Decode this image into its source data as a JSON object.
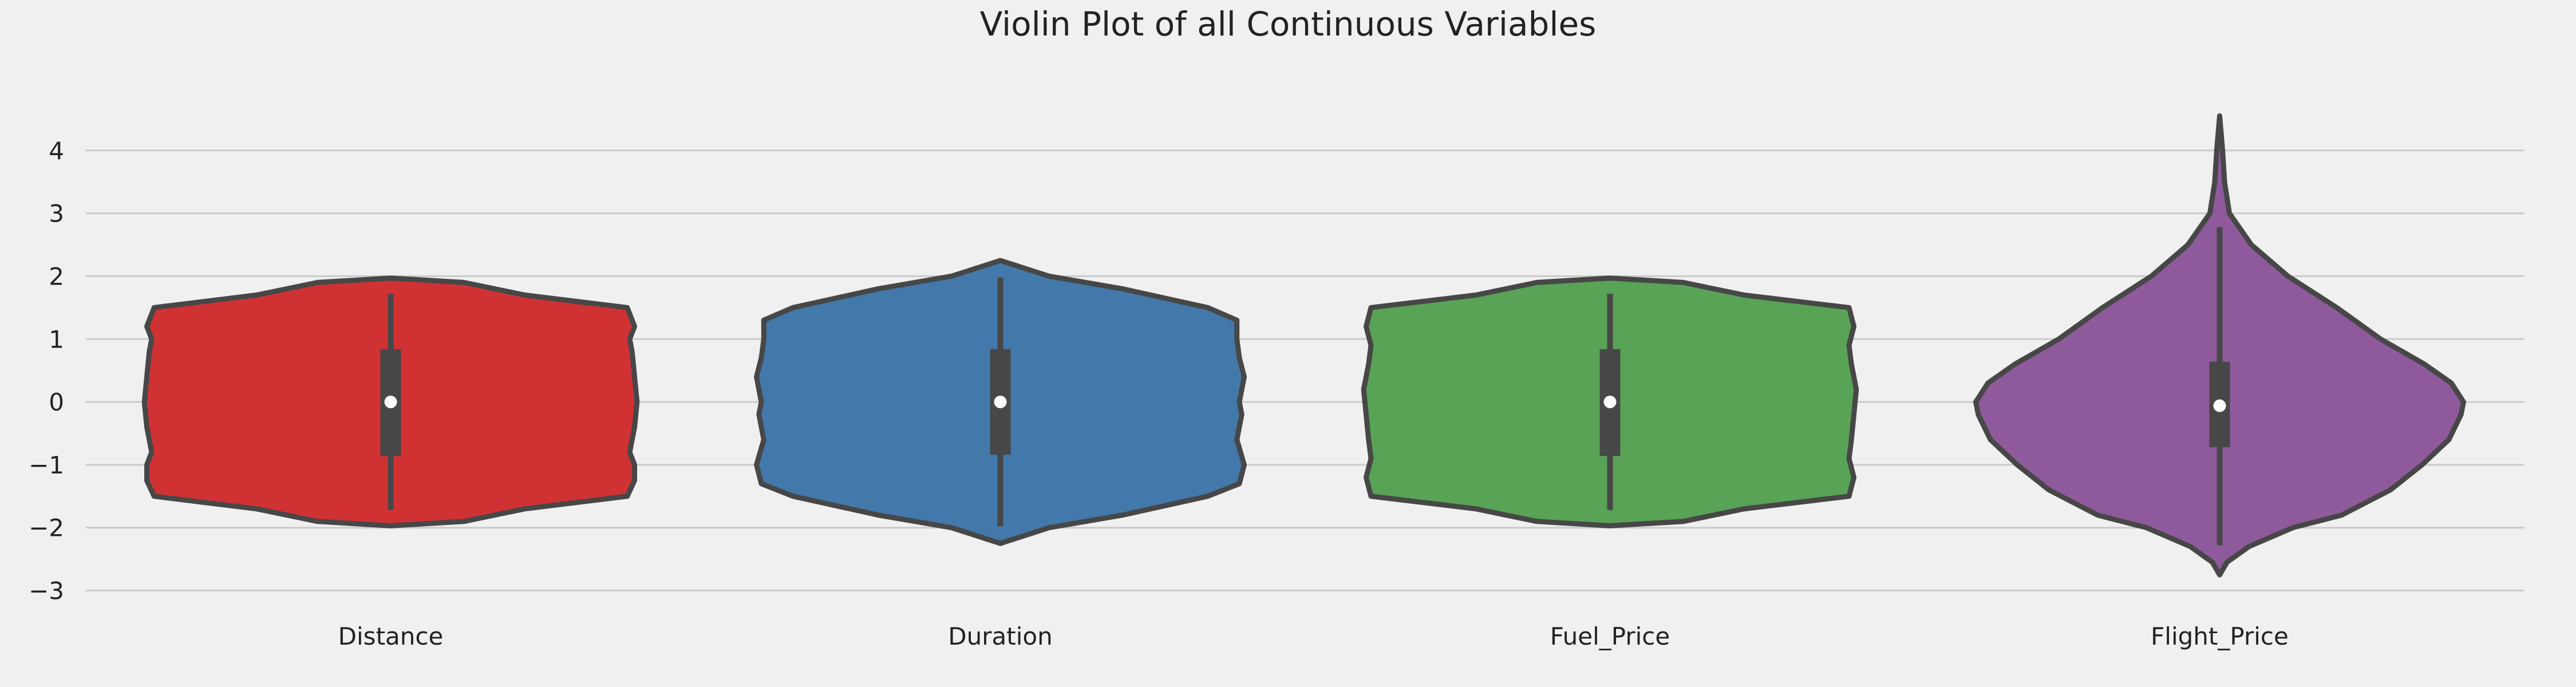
{
  "chart_data": {
    "type": "violin",
    "title": "Violin Plot of all Continuous Variables",
    "xlabel": "",
    "ylabel": "",
    "categories": [
      "Distance",
      "Duration",
      "Fuel_Price",
      "Flight_Price"
    ],
    "ylim": [
      -3.35,
      5.3
    ],
    "yticks": [
      -3,
      -2,
      -1,
      0,
      1,
      2,
      3,
      4
    ],
    "ytick_labels": [
      "−3",
      "−2",
      "−1",
      "0",
      "1",
      "2",
      "3",
      "4"
    ],
    "grid": "horizontal",
    "series": [
      {
        "category": "Distance",
        "color": "#d03234",
        "violin_min": -1.97,
        "violin_max": 1.97,
        "whisker_low": -1.72,
        "q1": -0.86,
        "median": 0.0,
        "q3": 0.84,
        "whisker_high": 1.72,
        "density_profile": [
          [
            -1.97,
            0.0
          ],
          [
            -1.9,
            0.3
          ],
          [
            -1.7,
            0.55
          ],
          [
            -1.5,
            0.97
          ],
          [
            -1.25,
            1.0
          ],
          [
            -1.0,
            1.0
          ],
          [
            -0.8,
            0.98
          ],
          [
            -0.4,
            1.0
          ],
          [
            0.0,
            1.01
          ],
          [
            0.4,
            1.0
          ],
          [
            0.8,
            0.99
          ],
          [
            1.0,
            0.98
          ],
          [
            1.2,
            1.0
          ],
          [
            1.5,
            0.97
          ],
          [
            1.7,
            0.55
          ],
          [
            1.9,
            0.3
          ],
          [
            1.97,
            0.0
          ]
        ]
      },
      {
        "category": "Duration",
        "color": "#4279aa",
        "violin_min": -2.25,
        "violin_max": 2.25,
        "whisker_low": -1.98,
        "q1": -0.84,
        "median": 0.0,
        "q3": 0.84,
        "whisker_high": 1.98,
        "density_profile": [
          [
            -2.25,
            0.0
          ],
          [
            -2.15,
            0.08
          ],
          [
            -2.0,
            0.2
          ],
          [
            -1.8,
            0.5
          ],
          [
            -1.5,
            0.85
          ],
          [
            -1.3,
            0.98
          ],
          [
            -1.0,
            1.0
          ],
          [
            -0.6,
            0.97
          ],
          [
            -0.2,
            0.99
          ],
          [
            0.0,
            0.98
          ],
          [
            0.4,
            1.0
          ],
          [
            0.7,
            0.98
          ],
          [
            1.0,
            0.97
          ],
          [
            1.3,
            0.97
          ],
          [
            1.5,
            0.85
          ],
          [
            1.8,
            0.5
          ],
          [
            2.0,
            0.2
          ],
          [
            2.15,
            0.08
          ],
          [
            2.25,
            0.0
          ]
        ]
      },
      {
        "category": "Fuel_Price",
        "color": "#58a356",
        "violin_min": -1.97,
        "violin_max": 1.97,
        "whisker_low": -1.72,
        "q1": -0.86,
        "median": 0.0,
        "q3": 0.84,
        "whisker_high": 1.72,
        "density_profile": [
          [
            -1.97,
            0.0
          ],
          [
            -1.9,
            0.3
          ],
          [
            -1.7,
            0.55
          ],
          [
            -1.5,
            0.98
          ],
          [
            -1.2,
            1.0
          ],
          [
            -0.9,
            0.98
          ],
          [
            -0.6,
            0.99
          ],
          [
            -0.2,
            1.0
          ],
          [
            0.2,
            1.01
          ],
          [
            0.6,
            0.99
          ],
          [
            0.9,
            0.98
          ],
          [
            1.2,
            1.0
          ],
          [
            1.5,
            0.98
          ],
          [
            1.7,
            0.55
          ],
          [
            1.9,
            0.3
          ],
          [
            1.97,
            0.0
          ]
        ]
      },
      {
        "category": "Flight_Price",
        "color": "#8e5a9b",
        "violin_min": -2.75,
        "violin_max": 4.55,
        "whisker_low": -2.28,
        "q1": -0.72,
        "median": -0.06,
        "q3": 0.64,
        "whisker_high": 2.78,
        "density_profile": [
          [
            -2.75,
            0.0
          ],
          [
            -2.55,
            0.03
          ],
          [
            -2.3,
            0.12
          ],
          [
            -2.0,
            0.3
          ],
          [
            -1.8,
            0.5
          ],
          [
            -1.4,
            0.7
          ],
          [
            -1.0,
            0.83
          ],
          [
            -0.6,
            0.94
          ],
          [
            -0.2,
            0.99
          ],
          [
            0.0,
            1.0
          ],
          [
            0.3,
            0.95
          ],
          [
            0.6,
            0.84
          ],
          [
            1.0,
            0.66
          ],
          [
            1.5,
            0.48
          ],
          [
            2.0,
            0.28
          ],
          [
            2.5,
            0.13
          ],
          [
            3.0,
            0.04
          ],
          [
            3.5,
            0.02
          ],
          [
            4.0,
            0.012
          ],
          [
            4.55,
            0.0
          ]
        ]
      }
    ]
  }
}
